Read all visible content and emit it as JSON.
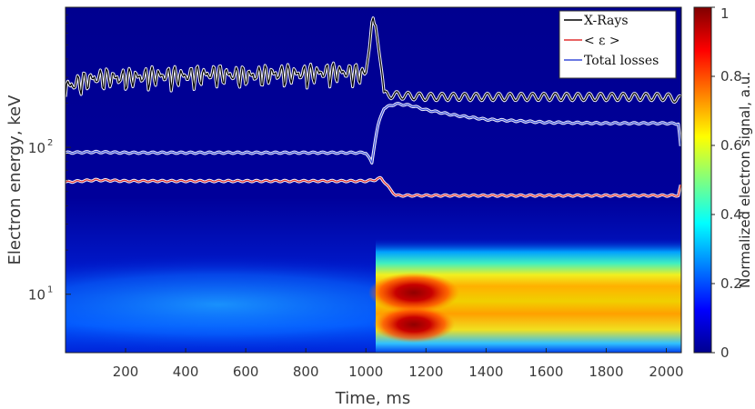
{
  "chart_data": {
    "type": "heatmap",
    "xlabel": "Time, ms",
    "ylabel": "Electron energy, keV",
    "x_ticks": [
      "200",
      "400",
      "600",
      "800",
      "1000",
      "1200",
      "1400",
      "1600",
      "1800",
      "2000"
    ],
    "x_tick_values": [
      200,
      400,
      600,
      800,
      1000,
      1200,
      1400,
      1600,
      1800,
      2000
    ],
    "xlim": [
      0,
      2050
    ],
    "y_scale": "log",
    "ylim": [
      4,
      900
    ],
    "y_ticks": [
      {
        "value": 10,
        "base": "10",
        "exp": "1"
      },
      {
        "value": 100,
        "base": "10",
        "exp": "2"
      }
    ],
    "colorbar": {
      "label": "Normalized electron signal, a.u.",
      "ticks": [
        "0",
        "0.2",
        "0.4",
        "0.6",
        "0.8",
        "1"
      ],
      "tick_values": [
        0,
        0.2,
        0.4,
        0.6,
        0.8,
        1
      ],
      "range": [
        0,
        1
      ],
      "colormap": "jet"
    },
    "legend": {
      "position": "top-right",
      "entries": [
        {
          "label": "X-Rays",
          "color": "#000000"
        },
        {
          "label": "< ε >",
          "color": "#e03030"
        },
        {
          "label": "Total losses",
          "color": "#3a4fd8"
        }
      ]
    },
    "series": [
      {
        "name": "X-Rays",
        "note_scale": "arbitrary",
        "x": [
          0,
          100,
          200,
          300,
          400,
          500,
          600,
          700,
          800,
          900,
          1000,
          1030,
          1060,
          1200,
          1400,
          1600,
          1800,
          2000,
          2040
        ],
        "y": [
          260,
          300,
          300,
          310,
          310,
          320,
          310,
          320,
          320,
          330,
          320,
          800,
          270,
          260,
          260,
          260,
          260,
          260,
          250
        ]
      },
      {
        "name": "< ε >",
        "x": [
          0,
          100,
          200,
          400,
          600,
          800,
          1000,
          1030,
          1050,
          1080,
          1100,
          1200,
          1400,
          1600,
          1800,
          2000,
          2040,
          2048
        ],
        "y": [
          58,
          60,
          59,
          59,
          59,
          59,
          59,
          60,
          62,
          52,
          47,
          47,
          47,
          47,
          47,
          47,
          47,
          55
        ]
      },
      {
        "name": "Total losses",
        "x": [
          0,
          100,
          200,
          400,
          600,
          800,
          1000,
          1020,
          1040,
          1060,
          1100,
          1150,
          1200,
          1300,
          1400,
          1600,
          1800,
          2000,
          2040,
          2050
        ],
        "y": [
          92,
          93,
          92,
          92,
          92,
          92,
          92,
          78,
          140,
          185,
          198,
          193,
          180,
          165,
          155,
          148,
          146,
          146,
          145,
          90
        ]
      }
    ],
    "heatmap_regions": [
      {
        "x": [
          0,
          1030
        ],
        "y_peak": 8,
        "peak_value": 0.25
      },
      {
        "x": [
          1030,
          2050
        ],
        "y_peaks": [
          6.5,
          11
        ],
        "peak_value": 1.0,
        "plateau_value": 0.65
      }
    ]
  }
}
